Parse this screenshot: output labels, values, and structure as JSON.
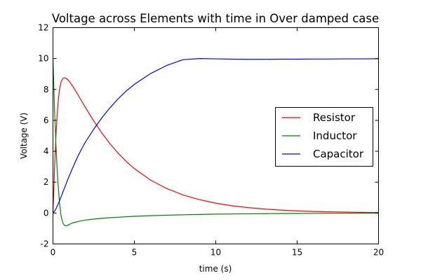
{
  "chart_data": {
    "type": "line",
    "title": "Voltage across Elements with time in Over damped case",
    "xlabel": "time (s)",
    "ylabel": "Voltage (V)",
    "xlim": [
      0,
      20
    ],
    "ylim": [
      -2,
      12
    ],
    "xticks": [
      0,
      5,
      10,
      15,
      20
    ],
    "yticks": [
      -2,
      0,
      2,
      4,
      6,
      8,
      10,
      12
    ],
    "grid": false,
    "legend_position": "center-right",
    "x": [
      0,
      0.1,
      0.2,
      0.3,
      0.4,
      0.5,
      0.6,
      0.7,
      0.8,
      0.9,
      1.0,
      1.2,
      1.4,
      1.6,
      1.8,
      2.0,
      2.5,
      3.0,
      3.5,
      4.0,
      4.5,
      5.0,
      6.0,
      7.0,
      8.0,
      9.0,
      10.0,
      11.0,
      12.0,
      13.0,
      14.0,
      15.0,
      16.0,
      17.0,
      18.0,
      19.0,
      20.0
    ],
    "series": [
      {
        "name": "Resistor",
        "color": "#ff0000",
        "values": [
          0,
          3.03,
          5.38,
          7.01,
          7.99,
          8.49,
          8.7,
          8.76,
          8.72,
          8.64,
          8.53,
          8.23,
          7.89,
          7.54,
          7.18,
          6.82,
          5.97,
          5.18,
          4.49,
          3.88,
          3.34,
          2.88,
          2.13,
          1.58,
          1.17,
          0.87,
          0.64,
          0.47,
          0.35,
          0.26,
          0.19,
          0.14,
          0.1,
          0.08,
          0.06,
          0.04,
          0.03
        ]
      },
      {
        "name": "Inductor",
        "color": "#008000",
        "values": [
          10,
          6.56,
          3.97,
          2.04,
          0.67,
          -0.19,
          -0.62,
          -0.79,
          -0.83,
          -0.8,
          -0.74,
          -0.64,
          -0.59,
          -0.53,
          -0.49,
          -0.45,
          -0.39,
          -0.34,
          -0.3,
          -0.27,
          -0.24,
          -0.21,
          -0.17,
          -0.14,
          -0.11,
          -0.09,
          -0.07,
          -0.06,
          -0.05,
          -0.04,
          -0.03,
          -0.025,
          -0.02,
          -0.015,
          -0.01,
          -0.01,
          -0.01
        ]
      },
      {
        "name": "Capacitor",
        "color": "#0000ff",
        "values": [
          0,
          0.12,
          0.31,
          0.54,
          0.79,
          1.06,
          1.33,
          1.6,
          1.87,
          2.15,
          2.4,
          2.9,
          3.38,
          3.82,
          4.23,
          4.61,
          5.42,
          6.16,
          6.81,
          7.39,
          7.9,
          8.33,
          9.03,
          9.56,
          9.93,
          10.0,
          9.98,
          9.96,
          9.95,
          9.95,
          9.96,
          9.96,
          9.97,
          9.97,
          9.98,
          9.98,
          9.99
        ]
      }
    ]
  }
}
